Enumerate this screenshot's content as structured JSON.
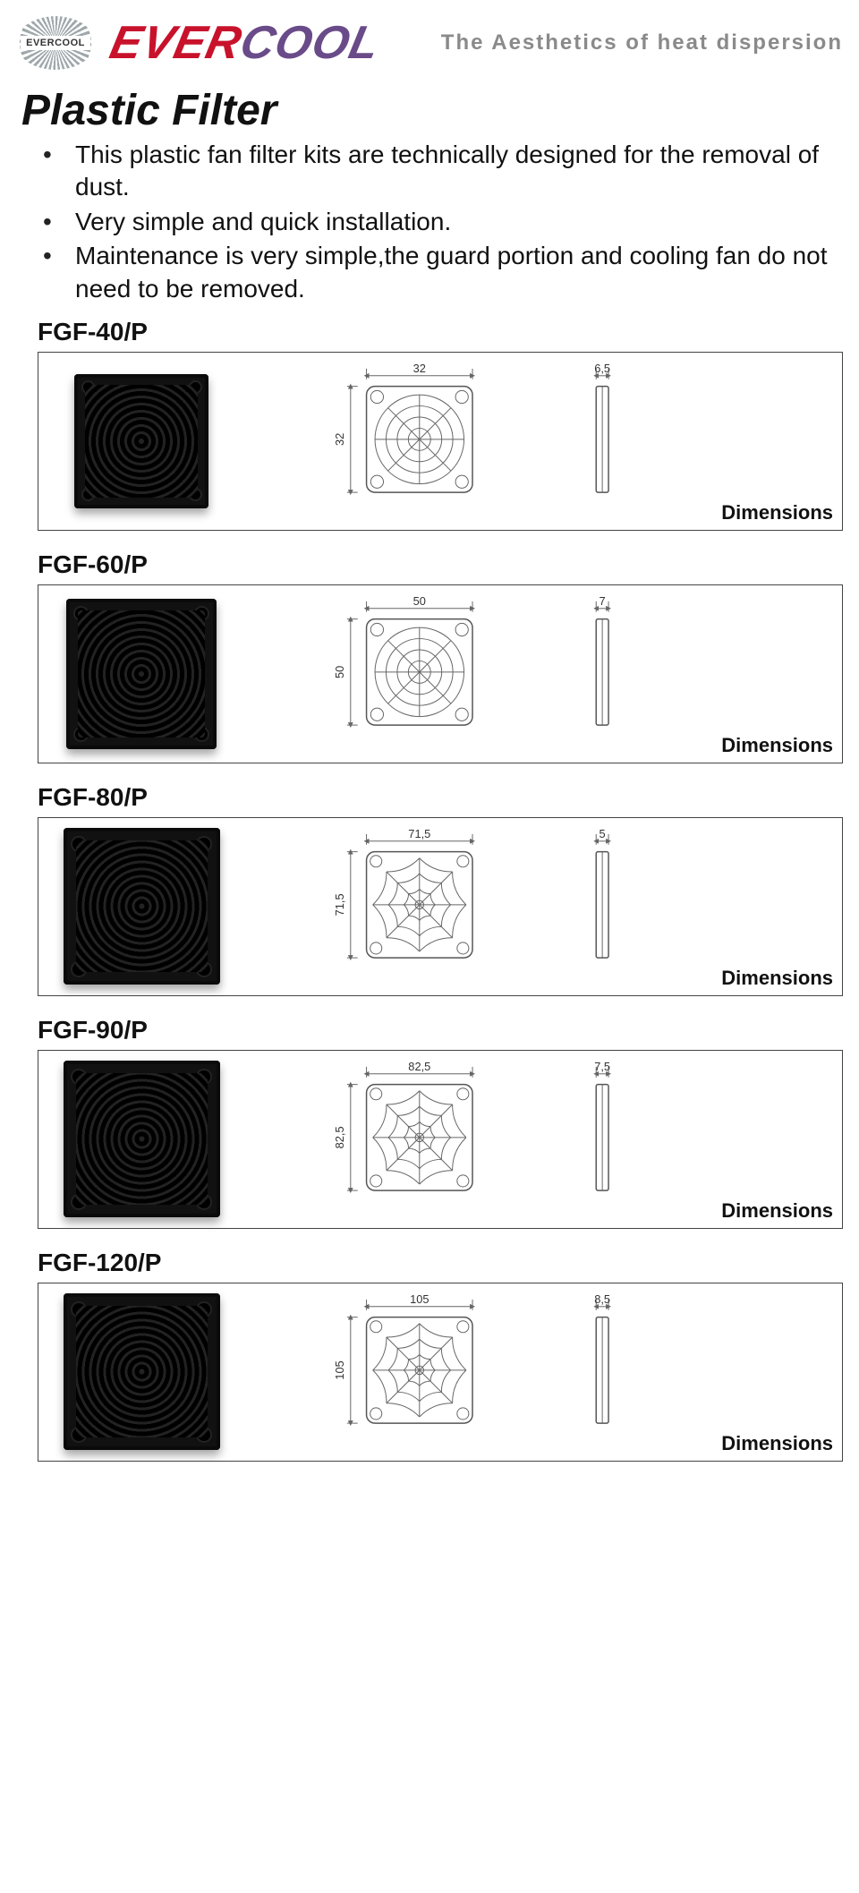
{
  "header": {
    "badge_text": "EVERCOOL",
    "wordmark": "EVERCOOL",
    "tagline": "The  Aesthetics of heat dispersion"
  },
  "title": "Plastic Filter",
  "bullets": [
    "This plastic fan filter kits are technically designed for the removal of dust.",
    "Very simple and quick installation.",
    "Maintenance is very simple,the guard portion and cooling fan do not need to be removed."
  ],
  "dim_label": "Dimensions",
  "products": [
    {
      "sku": "FGF-40/P",
      "pattern": "rings",
      "photo_size": 150,
      "w": "32",
      "h": "32",
      "d": "6,5"
    },
    {
      "sku": "FGF-60/P",
      "pattern": "rings",
      "photo_size": 168,
      "w": "50",
      "h": "50",
      "d": "7"
    },
    {
      "sku": "FGF-80/P",
      "pattern": "web",
      "photo_size": 175,
      "w": "71,5",
      "h": "71,5",
      "d": "5"
    },
    {
      "sku": "FGF-90/P",
      "pattern": "web",
      "photo_size": 175,
      "w": "82,5",
      "h": "82,5",
      "d": "7,5"
    },
    {
      "sku": "FGF-120/P",
      "pattern": "web",
      "photo_size": 175,
      "w": "105",
      "h": "105",
      "d": "8,5"
    }
  ],
  "colors": {
    "brand_red": "#c8122c",
    "brand_purple": "#6a4b89",
    "tagline_grey": "#8a8a8a",
    "rule": "#444444",
    "draw_stroke": "#666666"
  }
}
